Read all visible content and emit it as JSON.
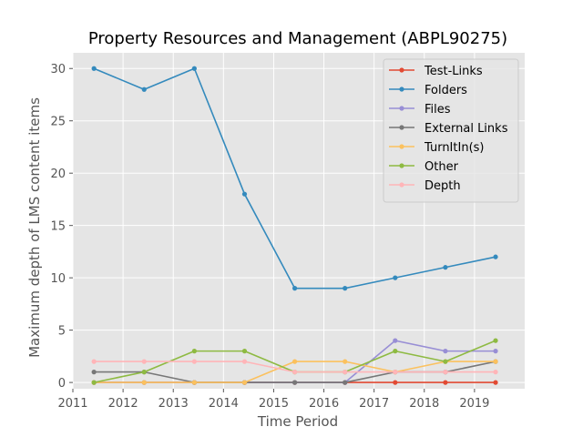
{
  "chart_data": {
    "type": "line",
    "title": "Property Resources and Management (ABPL90275)",
    "xlabel": "Time Period",
    "ylabel": "Maximum depth of LMS content items",
    "x": [
      2011.42,
      2012.42,
      2013.42,
      2014.42,
      2015.42,
      2016.42,
      2017.42,
      2018.42,
      2019.42
    ],
    "xlim": [
      2011,
      2020
    ],
    "ylim": [
      -0.6,
      31.5
    ],
    "xticks": [
      2011,
      2012,
      2013,
      2014,
      2015,
      2016,
      2017,
      2018,
      2019
    ],
    "yticks": [
      0,
      5,
      10,
      15,
      20,
      25,
      30
    ],
    "grid": true,
    "legend_position": "top-right",
    "style": {
      "background": "#E5E5E5",
      "grid_color": "#FFFFFF"
    },
    "series": [
      {
        "name": "Test-Links",
        "color": "#E24A33",
        "values": [
          0,
          0,
          0,
          0,
          0,
          0,
          0,
          0,
          0
        ]
      },
      {
        "name": "Folders",
        "color": "#348ABD",
        "values": [
          30,
          28,
          30,
          18,
          9,
          9,
          10,
          11,
          12
        ]
      },
      {
        "name": "Files",
        "color": "#988ED5",
        "values": [
          0,
          0,
          0,
          0,
          0,
          0,
          4,
          3,
          3
        ]
      },
      {
        "name": "External Links",
        "color": "#777777",
        "values": [
          1,
          1,
          0,
          0,
          0,
          0,
          1,
          1,
          2
        ]
      },
      {
        "name": "TurnItIn(s)",
        "color": "#FBC15E",
        "values": [
          0,
          0,
          0,
          0,
          2,
          2,
          1,
          2,
          2
        ]
      },
      {
        "name": "Other",
        "color": "#8EBA42",
        "values": [
          0,
          1,
          3,
          3,
          1,
          1,
          3,
          2,
          4
        ]
      },
      {
        "name": "Depth",
        "color": "#FFB5B8",
        "values": [
          2,
          2,
          2,
          2,
          1,
          1,
          1,
          1,
          1
        ]
      }
    ]
  }
}
